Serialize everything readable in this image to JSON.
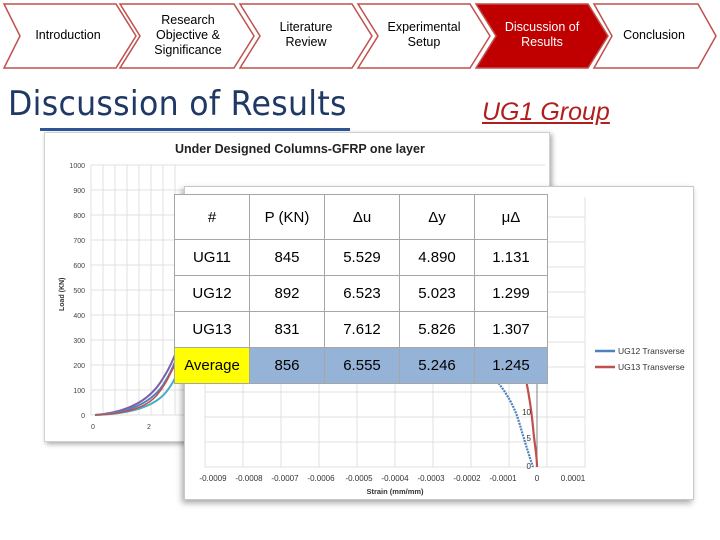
{
  "nav": {
    "items": [
      {
        "label": "Introduction",
        "active": false
      },
      {
        "label": "Research\nObjective &\nSignificance",
        "active": false
      },
      {
        "label": "Literature\nReview",
        "active": false
      },
      {
        "label": "Experimental\nSetup",
        "active": false
      },
      {
        "label": "Discussion of\nResults",
        "active": true
      },
      {
        "label": "Conclusion",
        "active": false
      }
    ],
    "colors": {
      "inactive_fill": "#ffffff",
      "inactive_stroke": "#c0504d",
      "active_fill": "#c00000"
    }
  },
  "page_title": "Discussion of Results",
  "group_label": "UG1 Group",
  "colors": {
    "title": "#1f3864",
    "group_label": "#b11e1e",
    "avg_row": "#95b3d7",
    "highlight": "#ffff00"
  },
  "back_chart": {
    "title": "Under Designed Columns-GFRP one layer",
    "y_axis_label": "Load (KN)",
    "y_ticks": [
      "1000",
      "900",
      "800",
      "700",
      "600",
      "500",
      "400",
      "300",
      "200",
      "100",
      "0"
    ],
    "x_ticks": [
      "0",
      "2"
    ]
  },
  "front_chart": {
    "x_axis_label": "Strain (mm/mm)",
    "x_ticks": [
      "-0.0009",
      "-0.0008",
      "-0.0007",
      "-0.0006",
      "-0.0005",
      "-0.0004",
      "-0.0003",
      "-0.0002",
      "-0.0001",
      "0",
      "0.0001"
    ],
    "y_ticks_visible": [
      "10",
      "5",
      "0"
    ],
    "legend": [
      {
        "name": "UG12 Transverse",
        "color": "#4f81bd"
      },
      {
        "name": "UG13 Transverse",
        "color": "#c0504d"
      }
    ]
  },
  "table": {
    "headers": [
      "#",
      "P (KN)",
      "Δu",
      "Δy",
      "μΔ"
    ],
    "rows": [
      [
        "UG11",
        "845",
        "5.529",
        "4.890",
        "1.131"
      ],
      [
        "UG12",
        "892",
        "6.523",
        "5.023",
        "1.299"
      ],
      [
        "UG13",
        "831",
        "7.612",
        "5.826",
        "1.307"
      ]
    ],
    "average": [
      "Average",
      "856",
      "6.555",
      "5.246",
      "1.245"
    ]
  }
}
